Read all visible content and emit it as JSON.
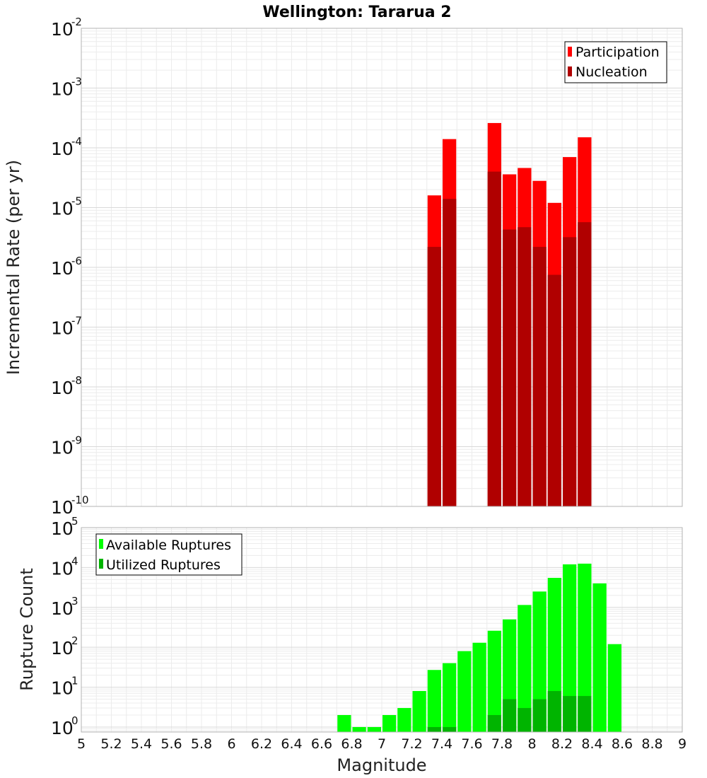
{
  "chart_data": [
    {
      "type": "bar",
      "title": "Wellington: Tararua 2",
      "xlabel": "Magnitude",
      "ylabel": "Incremental Rate (per yr)",
      "yscale": "log",
      "ylim": [
        1e-10,
        0.01
      ],
      "xlim": [
        5,
        9
      ],
      "bin_width": 0.1,
      "grid": true,
      "legend_position": "top-right",
      "series": [
        {
          "name": "Participation",
          "color": "#ff0000",
          "x": [
            7.35,
            7.45,
            7.75,
            7.85,
            7.95,
            8.05,
            8.15,
            8.25,
            8.35
          ],
          "values": [
            1.6e-05,
            0.00014,
            0.00026,
            3.6e-05,
            4.6e-05,
            2.8e-05,
            1.2e-05,
            7e-05,
            0.00015
          ]
        },
        {
          "name": "Nucleation",
          "color": "#b00000",
          "x": [
            7.35,
            7.45,
            7.75,
            7.85,
            7.95,
            8.05,
            8.15,
            8.25,
            8.35
          ],
          "values": [
            2.2e-06,
            1.4e-05,
            4e-05,
            4.3e-06,
            4.7e-06,
            2.2e-06,
            7.5e-07,
            3.2e-06,
            5.7e-06
          ]
        }
      ]
    },
    {
      "type": "bar",
      "xlabel": "Magnitude",
      "ylabel": "Rupture Count",
      "yscale": "log",
      "ylim": [
        0.75,
        100000
      ],
      "xlim": [
        5,
        9
      ],
      "bin_width": 0.1,
      "grid": true,
      "legend_position": "top-left",
      "x_ticks": [
        "5",
        "5.2",
        "5.4",
        "5.6",
        "5.8",
        "6",
        "6.2",
        "6.4",
        "6.6",
        "6.8",
        "7",
        "7.2",
        "7.4",
        "7.6",
        "7.8",
        "8",
        "8.2",
        "8.4",
        "8.6",
        "8.8",
        "9"
      ],
      "series": [
        {
          "name": "Available Ruptures",
          "color": "#00ff00",
          "x": [
            6.75,
            6.85,
            6.95,
            7.05,
            7.15,
            7.25,
            7.35,
            7.45,
            7.55,
            7.65,
            7.75,
            7.85,
            7.95,
            8.05,
            8.15,
            8.25,
            8.35,
            8.45,
            8.55
          ],
          "values": [
            2,
            1,
            1,
            2,
            3,
            8,
            27,
            40,
            80,
            130,
            260,
            500,
            1150,
            2500,
            5500,
            12000,
            12500,
            4000,
            120
          ]
        },
        {
          "name": "Utilized Ruptures",
          "color": "#00b400",
          "x": [
            7.35,
            7.45,
            7.75,
            7.85,
            7.95,
            8.05,
            8.15,
            8.25,
            8.35
          ],
          "values": [
            1,
            1,
            2,
            5,
            3,
            5,
            8,
            6,
            6
          ]
        }
      ]
    }
  ]
}
